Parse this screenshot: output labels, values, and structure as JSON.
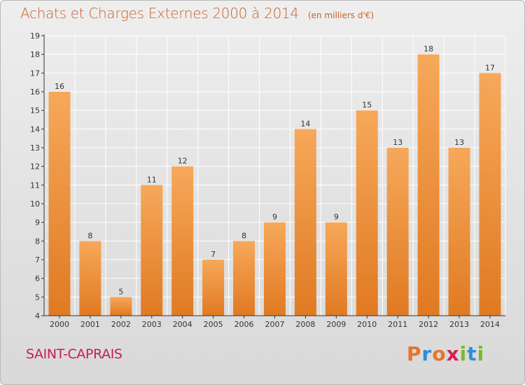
{
  "header": {
    "title": "Achats et Charges Externes 2000 à 2014",
    "subtitle": "(en milliers d'€)"
  },
  "footer": {
    "commune": "SAINT-CAPRAIS",
    "logo": "Proxiti",
    "logo_colors": [
      "#e8742a",
      "#2f8fd8",
      "#e8742a",
      "#d81f52",
      "#7cb82f",
      "#2f8fd8",
      "#7cb82f"
    ]
  },
  "colors": {
    "bar_top": "#f6a85a",
    "bar_bottom": "#e07a22",
    "axis": "#333333",
    "grid": "#ffffff",
    "accent": "#c8622c"
  },
  "chart_data": {
    "type": "bar",
    "title": "Achats et Charges Externes 2000 à 2014",
    "subtitle": "(en milliers d'€)",
    "categories": [
      "2000",
      "2001",
      "2002",
      "2003",
      "2004",
      "2005",
      "2006",
      "2007",
      "2008",
      "2009",
      "2010",
      "2011",
      "2012",
      "2013",
      "2014"
    ],
    "values": [
      16,
      8,
      5,
      11,
      12,
      7,
      8,
      9,
      14,
      9,
      15,
      13,
      18,
      13,
      17
    ],
    "ylim": [
      4,
      19
    ],
    "yticks": [
      4,
      5,
      6,
      7,
      8,
      9,
      10,
      11,
      12,
      13,
      14,
      15,
      16,
      17,
      18,
      19
    ],
    "grid": true,
    "legend": "none"
  }
}
